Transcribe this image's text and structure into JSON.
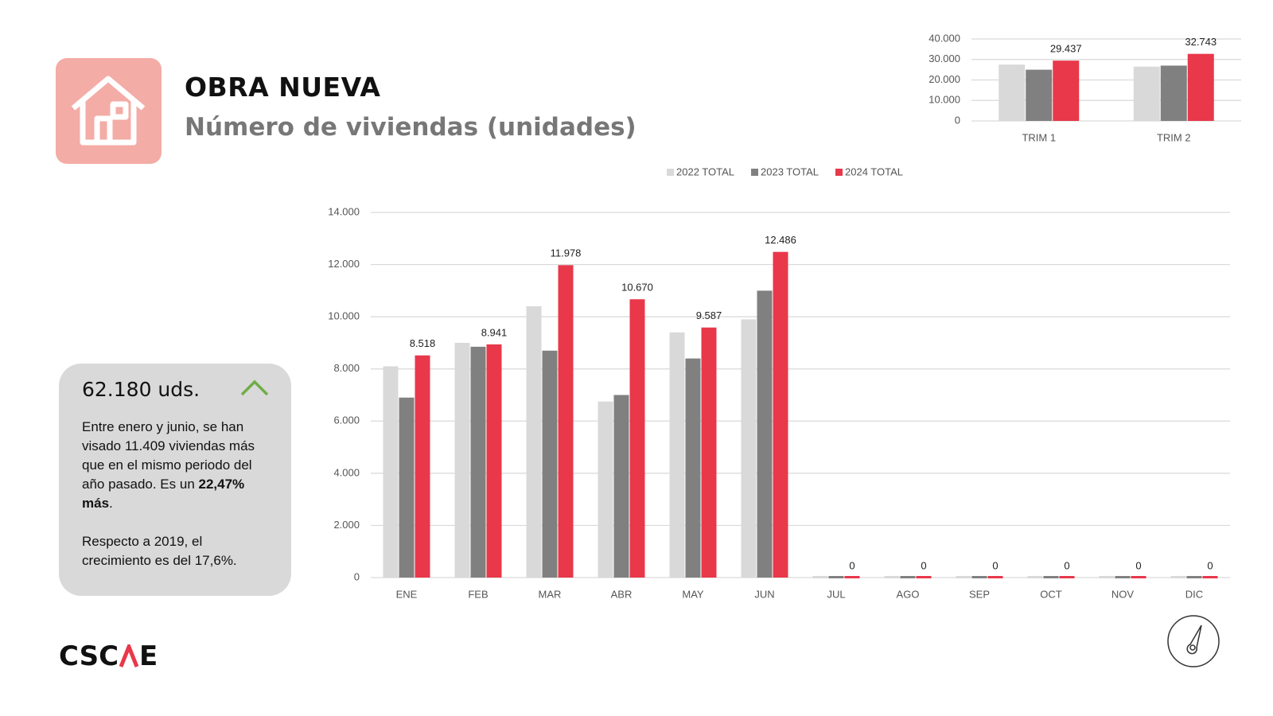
{
  "header": {
    "title": "OBRA NUEVA",
    "subtitle": "Número de viviendas (unidades)"
  },
  "card": {
    "headline": "62.180 uds.",
    "paragraph_1": {
      "text": "Entre enero y junio, se han visado 11.409 viviendas más que en el mismo periodo del año pasado. Es un ",
      "bold": "22,47% más",
      "end": "."
    },
    "paragraph_2": "Respecto a 2019, el crecimiento es del 17,6%."
  },
  "logo": {
    "left": "CSC",
    "right": "E"
  },
  "chart_data": [
    {
      "type": "bar",
      "categories": [
        "ENE",
        "FEB",
        "MAR",
        "ABR",
        "MAY",
        "JUN",
        "JUL",
        "AGO",
        "SEP",
        "OCT",
        "NOV",
        "DIC"
      ],
      "series": [
        {
          "name": "2022 TOTAL",
          "color": "#d9d9d9",
          "values": [
            8100,
            9000,
            10400,
            6750,
            9400,
            9900,
            0,
            0,
            0,
            0,
            0,
            0
          ]
        },
        {
          "name": "2023 TOTAL",
          "color": "#808080",
          "values": [
            6900,
            8850,
            8700,
            7000,
            8400,
            11000,
            0,
            0,
            0,
            0,
            0,
            0
          ]
        },
        {
          "name": "2024 TOTAL",
          "color": "#e8384a",
          "values": [
            8518,
            8941,
            11978,
            10670,
            9587,
            12486,
            0,
            0,
            0,
            0,
            0,
            0
          ],
          "value_labels": [
            "8.518",
            "8.941",
            "11.978",
            "10.670",
            "9.587",
            "12.486",
            "0",
            "0",
            "0",
            "0",
            "0",
            "0"
          ]
        }
      ],
      "ylim": [
        0,
        14000
      ],
      "yticks": [
        0,
        {
          "value": 2000,
          "label": "2.000"
        },
        {
          "value": 4000,
          "label": "4.000"
        },
        {
          "value": 6000,
          "label": "6.000"
        },
        {
          "value": 8000,
          "label": "8.000"
        },
        {
          "value": 10000,
          "label": "10.000"
        },
        {
          "value": 12000,
          "label": "12.000"
        },
        {
          "value": 14000,
          "label": "14.000"
        }
      ],
      "grid": true,
      "legend": "top"
    },
    {
      "type": "bar",
      "categories": [
        "TRIM 1",
        "TRIM 2"
      ],
      "series": [
        {
          "color": "#d9d9d9",
          "values": [
            27500,
            26500
          ]
        },
        {
          "color": "#808080",
          "values": [
            25000,
            27000
          ]
        },
        {
          "color": "#e8384a",
          "values": [
            29437,
            32743
          ],
          "value_labels": [
            "29.437",
            "32.743"
          ]
        }
      ],
      "ylim": [
        0,
        40000
      ],
      "yticks": [
        0,
        {
          "value": 10000,
          "label": "10.000"
        },
        {
          "value": 20000,
          "label": "20.000"
        },
        {
          "value": 30000,
          "label": "30.000"
        },
        {
          "value": 40000,
          "label": "40.000"
        }
      ],
      "grid": true
    }
  ]
}
